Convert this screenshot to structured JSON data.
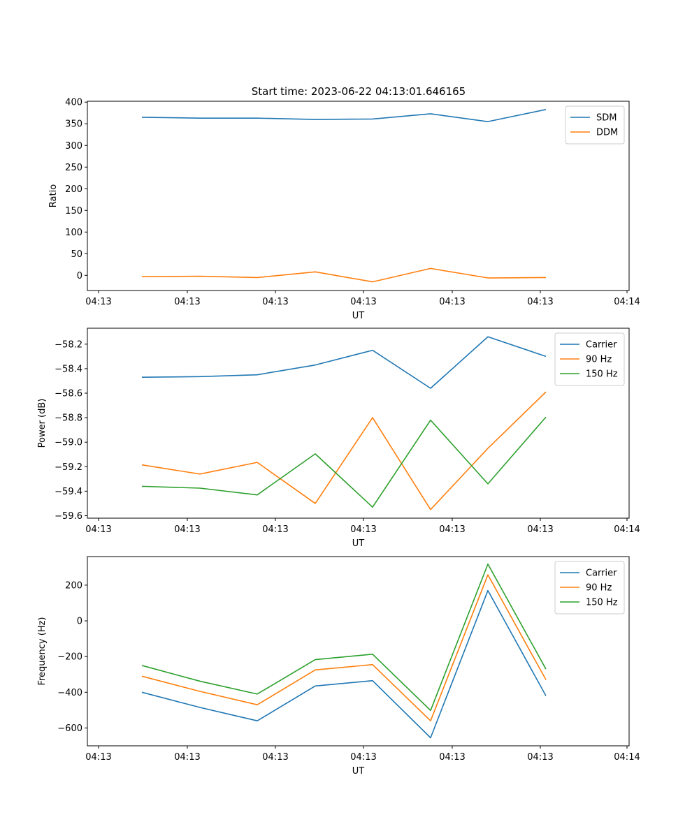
{
  "figure_title": "Start time: 2023-06-22 04:13:01.646165",
  "chart_data": [
    {
      "type": "line",
      "xlabel": "UT",
      "ylabel": "Ratio",
      "x_tick_labels": [
        "04:13",
        "04:13",
        "04:13",
        "04:13",
        "04:13",
        "04:13",
        "04:13"
      ],
      "x_tick_labels_edge": [
        "04:13",
        "04:14"
      ],
      "ylim": [
        -35,
        402
      ],
      "y_ticks": [
        0,
        50,
        100,
        150,
        200,
        250,
        300,
        350,
        400
      ],
      "legend_position": "upper right",
      "series": [
        {
          "name": "SDM",
          "color": "#1f77b4",
          "values": [
            365,
            363,
            363,
            360,
            361,
            373,
            355,
            383
          ]
        },
        {
          "name": "DDM",
          "color": "#ff7f0e",
          "values": [
            -3,
            -2,
            -5,
            8,
            -15,
            16,
            -6,
            -5
          ]
        }
      ]
    },
    {
      "type": "line",
      "xlabel": "UT",
      "ylabel": "Power (dB)",
      "x_tick_labels": [
        "04:13",
        "04:13",
        "04:13",
        "04:13",
        "04:13",
        "04:13",
        "04:13"
      ],
      "x_tick_labels_edge": [
        "04:13",
        "04:14"
      ],
      "ylim": [
        -59.62,
        -58.07
      ],
      "y_ticks": [
        -59.6,
        -59.4,
        -59.2,
        -59.0,
        -58.8,
        -58.6,
        -58.4,
        -58.2
      ],
      "y_tick_labels": [
        "−59.6",
        "−59.4",
        "−59.2",
        "−59.0",
        "−58.8",
        "−58.6",
        "−58.4",
        "−58.2"
      ],
      "legend_position": "upper right",
      "series": [
        {
          "name": "Carrier",
          "color": "#1f77b4",
          "values": [
            -58.47,
            -58.465,
            -58.45,
            -58.37,
            -58.25,
            -58.56,
            -58.14,
            -58.3
          ]
        },
        {
          "name": "90 Hz",
          "color": "#ff7f0e",
          "values": [
            -59.185,
            -59.26,
            -59.165,
            -59.5,
            -58.8,
            -59.55,
            -59.05,
            -58.59
          ]
        },
        {
          "name": "150 Hz",
          "color": "#2ca02c",
          "values": [
            -59.36,
            -59.375,
            -59.43,
            -59.095,
            -59.53,
            -58.82,
            -59.34,
            -58.795
          ]
        }
      ]
    },
    {
      "type": "line",
      "xlabel": "UT",
      "ylabel": "Frequency (Hz)",
      "x_tick_labels": [
        "04:13",
        "04:13",
        "04:13",
        "04:13",
        "04:13",
        "04:13",
        "04:13"
      ],
      "x_tick_labels_edge": [
        "04:13",
        "04:14"
      ],
      "ylim": [
        -700,
        360
      ],
      "y_ticks": [
        -600,
        -400,
        -200,
        0,
        200
      ],
      "y_tick_labels": [
        "−600",
        "−400",
        "−200",
        "0",
        "200"
      ],
      "legend_position": "upper right",
      "series": [
        {
          "name": "Carrier",
          "color": "#1f77b4",
          "values": [
            -400,
            -485,
            -560,
            -365,
            -335,
            -655,
            170,
            -420
          ]
        },
        {
          "name": "90 Hz",
          "color": "#ff7f0e",
          "values": [
            -310,
            -395,
            -470,
            -275,
            -245,
            -560,
            258,
            -330
          ]
        },
        {
          "name": "150 Hz",
          "color": "#2ca02c",
          "values": [
            -250,
            -338,
            -410,
            -217,
            -187,
            -502,
            318,
            -270
          ]
        }
      ]
    }
  ]
}
